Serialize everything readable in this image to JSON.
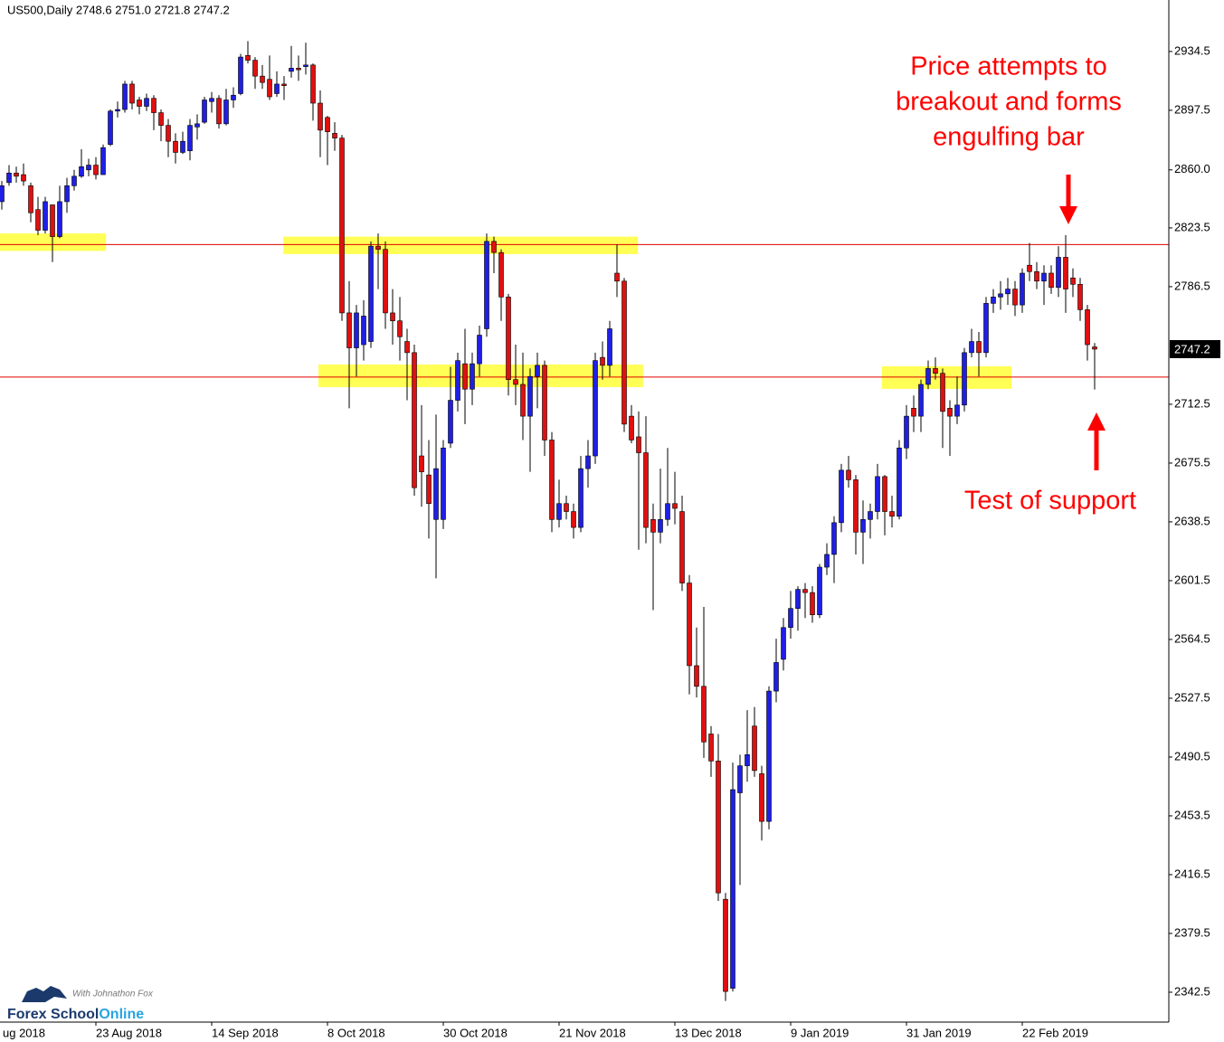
{
  "chart_data": {
    "type": "candlestick",
    "header": "US500,Daily  2748.6 2751.0 2721.8 2747.2",
    "bull_color": "#1f1fe6",
    "bear_color": "#e01010",
    "line_color": "#e00000",
    "zone_color": "#ffff55",
    "xlim": [
      -0.25,
      161.25
    ],
    "xticks": [
      {
        "value": -3,
        "label": "ug 2018"
      },
      {
        "value": 13,
        "label": "23 Aug 2018"
      },
      {
        "value": 29,
        "label": "14 Sep 2018"
      },
      {
        "value": 45,
        "label": "8 Oct 2018"
      },
      {
        "value": 61,
        "label": "30 Oct 2018"
      },
      {
        "value": 77,
        "label": "21 Nov 2018"
      },
      {
        "value": 93,
        "label": "13 Dec 2018"
      },
      {
        "value": 109,
        "label": "9 Jan 2019"
      },
      {
        "value": 125,
        "label": "31 Jan 2019"
      },
      {
        "value": 141,
        "label": "22 Feb 2019"
      }
    ],
    "ylim": [
      2323.7,
      2966.9
    ],
    "yticks": [
      2342.5,
      2379.5,
      2416.5,
      2453.5,
      2490.5,
      2527.5,
      2564.5,
      2601.5,
      2638.5,
      2675.5,
      2712.5,
      2786.5,
      2823.5,
      {
        "value": 2860,
        "label": "2860.0"
      },
      2897.5,
      2934.5
    ],
    "open": [
      2840,
      2852,
      2858,
      2857,
      2850,
      2835,
      2822,
      2838,
      2818,
      2840,
      2850,
      2856,
      2860,
      2863,
      2857,
      2876,
      2897,
      2898,
      2914,
      2904,
      2900,
      2905,
      2896,
      2888,
      2878,
      2871,
      2872,
      2887,
      2890,
      2903,
      2905,
      2889,
      2904,
      2908,
      2932,
      2929,
      2919,
      2917,
      2908,
      2914,
      2922,
      2924,
      2925,
      2926,
      2902,
      2893,
      2883,
      2880,
      2770,
      2748,
      2750,
      2752,
      2812,
      2810,
      2770,
      2765,
      2752,
      2745,
      2680,
      2668,
      2640,
      2640,
      2688,
      2715,
      2738,
      2722,
      2738,
      2760,
      2815,
      2808,
      2780,
      2728,
      2725,
      2705,
      2730,
      2737,
      2690,
      2640,
      2650,
      2645,
      2635,
      2672,
      2680,
      2742,
      2737,
      2795,
      2790,
      2705,
      2692,
      2682,
      2640,
      2632,
      2640,
      2650,
      2645,
      2600,
      2548,
      2535,
      2505,
      2488,
      2401,
      2345,
      2468,
      2485,
      2510,
      2480,
      2450,
      2532,
      2552,
      2572,
      2584,
      2596,
      2594,
      2580,
      2610,
      2618,
      2638,
      2671,
      2665,
      2632,
      2640,
      2645,
      2667,
      2645,
      2642,
      2685,
      2710,
      2705,
      2725,
      2735,
      2732,
      2710,
      2705,
      2712,
      2745,
      2752,
      2745,
      2776,
      2780,
      2782,
      2785,
      2775,
      2800,
      2796,
      2790,
      2795,
      2786,
      2805,
      2792,
      2788,
      2772,
      2748.6
    ],
    "high": [
      2853,
      2863,
      2862,
      2864,
      2852,
      2843,
      2843,
      2838,
      2850,
      2855,
      2860,
      2873,
      2867,
      2868,
      2876,
      2898,
      2903,
      2916,
      2916,
      2906,
      2908,
      2907,
      2898,
      2892,
      2883,
      2884,
      2892,
      2895,
      2906,
      2909,
      2907,
      2911,
      2912,
      2933,
      2941,
      2931,
      2926,
      2932,
      2922,
      2919,
      2938,
      2932,
      2940,
      2927,
      2910,
      2894,
      2890,
      2882,
      2790,
      2775,
      2778,
      2815,
      2820,
      2815,
      2785,
      2780,
      2760,
      2750,
      2712,
      2690,
      2706,
      2690,
      2736,
      2745,
      2760,
      2745,
      2762,
      2820,
      2818,
      2810,
      2782,
      2750,
      2745,
      2735,
      2745,
      2740,
      2695,
      2665,
      2655,
      2650,
      2680,
      2690,
      2745,
      2752,
      2765,
      2813,
      2792,
      2712,
      2708,
      2705,
      2650,
      2672,
      2685,
      2670,
      2655,
      2605,
      2572,
      2585,
      2510,
      2505,
      2405,
      2487,
      2492,
      2520,
      2522,
      2485,
      2535,
      2565,
      2578,
      2595,
      2598,
      2600,
      2598,
      2612,
      2625,
      2642,
      2675,
      2680,
      2668,
      2652,
      2650,
      2675,
      2668,
      2655,
      2690,
      2712,
      2718,
      2728,
      2740,
      2742,
      2735,
      2715,
      2730,
      2748,
      2760,
      2758,
      2780,
      2785,
      2790,
      2792,
      2790,
      2798,
      2814,
      2802,
      2800,
      2800,
      2812,
      2819,
      2798,
      2792,
      2775,
      2751
    ],
    "low": [
      2835,
      2850,
      2852,
      2850,
      2827,
      2819,
      2820,
      2802,
      2817,
      2833,
      2847,
      2855,
      2856,
      2854,
      2857,
      2875,
      2893,
      2896,
      2898,
      2895,
      2897,
      2885,
      2878,
      2868,
      2864,
      2870,
      2866,
      2879,
      2889,
      2896,
      2886,
      2888,
      2899,
      2907,
      2927,
      2911,
      2911,
      2904,
      2906,
      2904,
      2918,
      2916,
      2920,
      2891,
      2868,
      2863,
      2872,
      2765,
      2710,
      2730,
      2740,
      2748,
      2785,
      2760,
      2750,
      2740,
      2715,
      2655,
      2648,
      2628,
      2603,
      2634,
      2685,
      2708,
      2700,
      2712,
      2730,
      2755,
      2795,
      2765,
      2718,
      2712,
      2690,
      2670,
      2710,
      2680,
      2632,
      2635,
      2640,
      2628,
      2632,
      2660,
      2675,
      2728,
      2730,
      2780,
      2695,
      2688,
      2621,
      2625,
      2583,
      2625,
      2636,
      2637,
      2595,
      2530,
      2528,
      2490,
      2478,
      2400,
      2337,
      2343,
      2410,
      2475,
      2478,
      2438,
      2445,
      2525,
      2545,
      2565,
      2570,
      2578,
      2575,
      2578,
      2605,
      2600,
      2632,
      2660,
      2618,
      2612,
      2628,
      2640,
      2630,
      2635,
      2640,
      2678,
      2695,
      2695,
      2722,
      2728,
      2685,
      2680,
      2700,
      2708,
      2742,
      2730,
      2742,
      2770,
      2772,
      2775,
      2768,
      2770,
      2790,
      2785,
      2775,
      2782,
      2780,
      2770,
      2780,
      2765,
      2740,
      2721.8
    ],
    "close": [
      2850,
      2858,
      2856,
      2853,
      2833,
      2822,
      2840,
      2818,
      2840,
      2850,
      2856,
      2862,
      2863,
      2857,
      2874,
      2897,
      2898,
      2914,
      2902,
      2900,
      2905,
      2896,
      2888,
      2878,
      2871,
      2878,
      2888,
      2889,
      2904,
      2905,
      2889,
      2904,
      2907,
      2931,
      2929,
      2919,
      2915,
      2906,
      2914,
      2913,
      2924,
      2923,
      2926,
      2902,
      2885,
      2884,
      2880,
      2770,
      2748,
      2770,
      2768,
      2812,
      2810,
      2770,
      2765,
      2755,
      2745,
      2660,
      2670,
      2650,
      2672,
      2685,
      2715,
      2740,
      2722,
      2738,
      2756,
      2815,
      2808,
      2780,
      2728,
      2725,
      2705,
      2730,
      2737,
      2690,
      2640,
      2650,
      2645,
      2635,
      2672,
      2680,
      2740,
      2737,
      2760,
      2790,
      2700,
      2690,
      2682,
      2635,
      2632,
      2640,
      2650,
      2647,
      2600,
      2548,
      2535,
      2500,
      2488,
      2405,
      2343,
      2470,
      2485,
      2492,
      2482,
      2450,
      2532,
      2550,
      2572,
      2584,
      2596,
      2594,
      2580,
      2610,
      2618,
      2638,
      2671,
      2665,
      2632,
      2640,
      2645,
      2667,
      2645,
      2642,
      2685,
      2705,
      2705,
      2725,
      2735,
      2732,
      2708,
      2705,
      2712,
      2745,
      2752,
      2745,
      2776,
      2780,
      2782,
      2785,
      2775,
      2795,
      2796,
      2790,
      2795,
      2786,
      2805,
      2785,
      2788,
      2772,
      2750,
      2747.2
    ],
    "lines": [
      2813,
      2729.6
    ],
    "zones": [
      {
        "x": [
          -0.5,
          14.4
        ],
        "y": [
          2809,
          2820
        ]
      },
      {
        "x": [
          38.9,
          87.9
        ],
        "y": [
          2807,
          2818
        ]
      },
      {
        "x": [
          43.75,
          88.6
        ],
        "y": [
          2723.3,
          2737.5
        ]
      },
      {
        "x": [
          121.6,
          139.5
        ],
        "y": [
          2722.2,
          2736.4
        ]
      }
    ],
    "annotations": [
      {
        "text": [
          "Price attempts to",
          "breakout and forms",
          "engulfing bar"
        ]
      },
      {
        "text": [
          "Test of support"
        ]
      }
    ]
  },
  "logo": {
    "tagline": "With Johnathon Fox",
    "name": "Forex School",
    "accent": "Online"
  }
}
